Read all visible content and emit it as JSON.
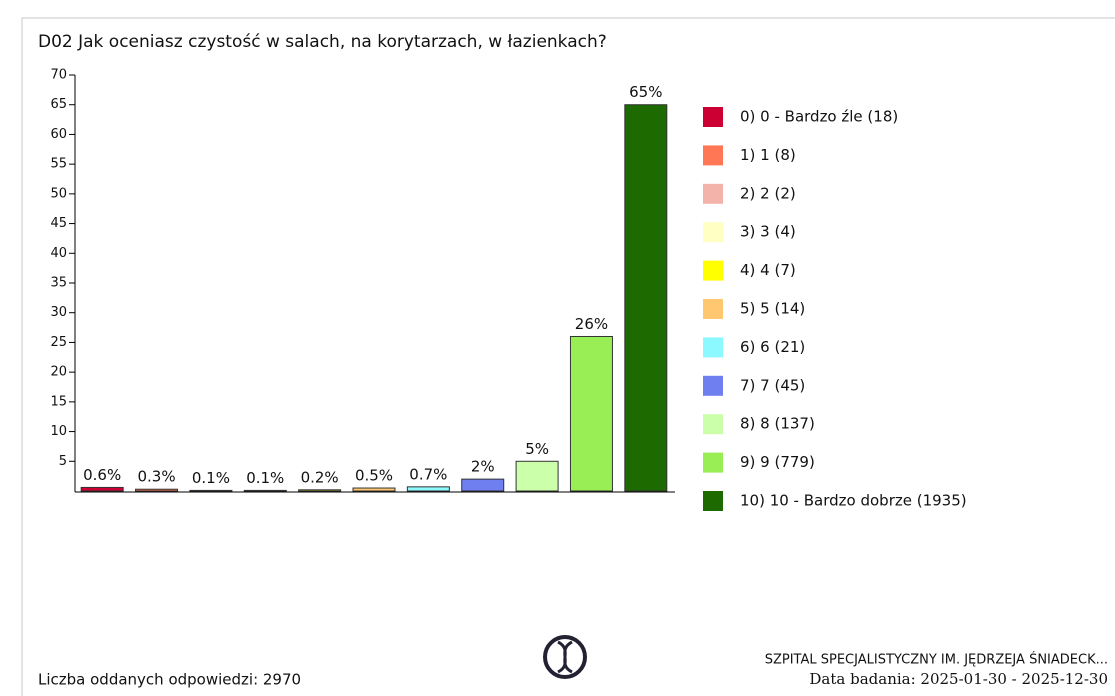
{
  "chart_data": {
    "type": "bar",
    "title": "D02 Jak oceniasz czystość w salach, na korytarzach, w łazienkach?",
    "categories": [
      "0) 0 - Bardzo źle (18)",
      "1) 1 (8)",
      "2) 2 (2)",
      "3) 3 (4)",
      "4) 4 (7)",
      "5) 5 (14)",
      "6) 6 (21)",
      "7) 7 (45)",
      "8) 8 (137)",
      "9) 9 (779)",
      "10) 10 - Bardzo dobrze (1935)"
    ],
    "values": [
      0.6,
      0.3,
      0.1,
      0.1,
      0.2,
      0.5,
      0.7,
      2,
      5,
      26,
      65
    ],
    "value_labels": [
      "0.6%",
      "0.3%",
      "0.1%",
      "0.1%",
      "0.2%",
      "0.5%",
      "0.7%",
      "2%",
      "5%",
      "26%",
      "65%"
    ],
    "colors": [
      "#cc0033",
      "#ff7755",
      "#f4b3aa",
      "#ffffc4",
      "#ffff00",
      "#ffc870",
      "#8cf8ff",
      "#6f7ff0",
      "#ccffaa",
      "#99ee55",
      "#1d6b00"
    ],
    "ylim": [
      0,
      70
    ],
    "yticks": [
      5,
      10,
      15,
      20,
      25,
      30,
      35,
      40,
      45,
      50,
      55,
      60,
      65,
      70
    ],
    "legend": "right"
  },
  "footer": {
    "responses": "Liczba oddanych odpowiedzi: 2970",
    "hospital": "SZPITAL SPECJALISTYCZNY IM. JĘDRZEJA ŚNIADECK...",
    "dates": "Data badania: 2025-01-30 - 2025-12-30"
  }
}
